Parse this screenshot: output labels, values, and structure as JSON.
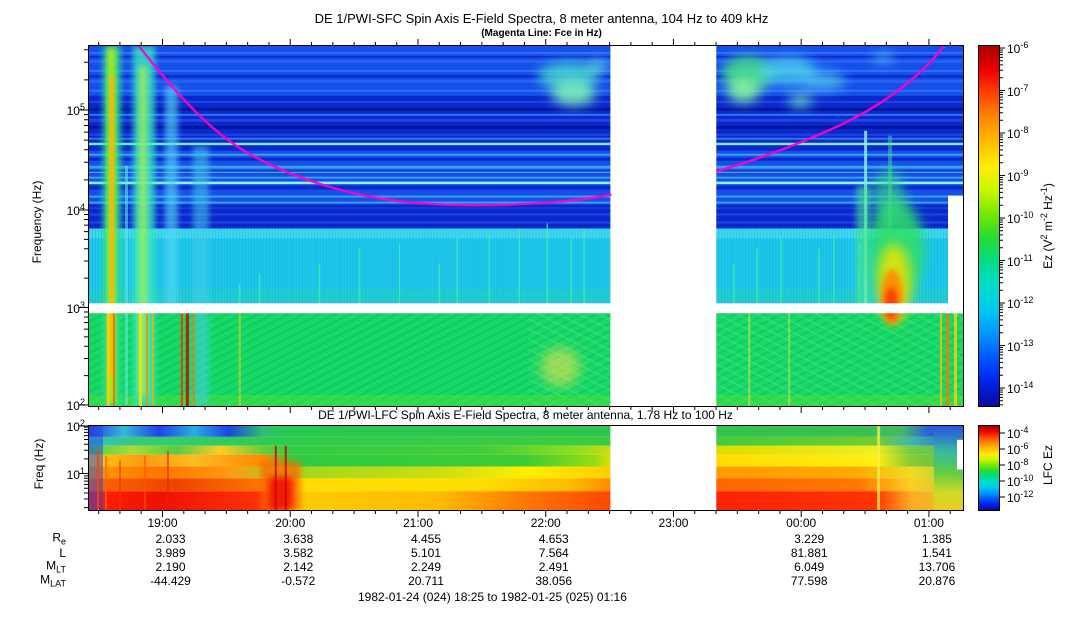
{
  "header": {
    "title": "DE 1/PWI-SFC  Spin Axis E-Field Spectra, 8 meter antenna, 104 Hz to 409 kHz",
    "subtitle": "(Magenta Line: Fce in Hz)"
  },
  "sfc_panel": {
    "ylabel": "Frequency (Hz)",
    "ytick_base": "10",
    "ytick_exponents": [
      "5",
      "4",
      "3",
      "2"
    ],
    "colorbar": {
      "tick_base": "10",
      "tick_exponents": [
        "-6",
        "-7",
        "-8",
        "-9",
        "-10",
        "-11",
        "-12",
        "-13",
        "-14"
      ],
      "label_parts": [
        [
          "t",
          "Ez (V"
        ],
        [
          "s",
          "2"
        ],
        [
          "t",
          " m"
        ],
        [
          "s",
          "-2"
        ],
        [
          "t",
          " Hz"
        ],
        [
          "s",
          "-1"
        ],
        [
          "t",
          ")"
        ]
      ]
    }
  },
  "lfc_panel": {
    "title": "DE 1/PWI-LFC  Spin Axis E-Field Spectra, 8 meter antenna, 1.78 Hz to 100 Hz",
    "ylabel": "Freq (Hz)",
    "ytick_base": "10",
    "ytick_exponents": [
      "2",
      "1"
    ],
    "colorbar": {
      "tick_base": "10",
      "tick_exponents": [
        "-4",
        "-6",
        "-8",
        "-10",
        "-12"
      ],
      "label": "LFC Ez"
    }
  },
  "time_axis": {
    "labels": [
      "19:00",
      "20:00",
      "21:00",
      "22:00",
      "23:00",
      "00:00",
      "01:00"
    ]
  },
  "ephemeris": {
    "rows": [
      {
        "label": "R",
        "sub": "e",
        "values": [
          "2.033",
          "3.638",
          "4.455",
          "4.653",
          "",
          "3.229",
          "1.385"
        ]
      },
      {
        "label": "L",
        "sub": "",
        "values": [
          "3.989",
          "3.582",
          "5.101",
          "7.564",
          "",
          "81.881",
          "1.541"
        ]
      },
      {
        "label": "M",
        "sub": "LT",
        "values": [
          "2.190",
          "2.142",
          "2.249",
          "2.491",
          "",
          "6.049",
          "13.706"
        ]
      },
      {
        "label": "M",
        "sub": "LAT",
        "values": [
          "-44.429",
          "-0.572",
          "20.711",
          "38.056",
          "",
          "77.598",
          "20.876"
        ]
      }
    ]
  },
  "footer": "1982-01-24 (024) 18:25 to 1982-01-25 (025) 01:16",
  "colors": {
    "fce_line": "#ff00c8",
    "data_gap": "#ffffff",
    "scale": [
      "#aa0000",
      "#ee0000",
      "#ff4400",
      "#ff8800",
      "#ffbb00",
      "#ffee00",
      "#ccf500",
      "#77e800",
      "#22dd33",
      "#00dd88",
      "#00ddcc",
      "#00c8f0",
      "#0096ff",
      "#0055ff",
      "#0022ee",
      "#0b0b99"
    ]
  },
  "chart_data": [
    {
      "type": "heatmap",
      "title": "DE 1/PWI-SFC  Spin Axis E-Field Spectra, 8 meter antenna, 104 Hz to 409 kHz",
      "xlabel": "UT, 1982-01-24 18:25 to 1982-01-25 01:16",
      "x_ticks": [
        "19:00",
        "20:00",
        "21:00",
        "22:00",
        "23:00",
        "00:00",
        "01:00"
      ],
      "ylabel": "Frequency (Hz)",
      "y_scale": "log",
      "y_range_hz": [
        100,
        409000
      ],
      "z_label": "Ez (V^2 m^-2 Hz^-1)",
      "z_range": [
        1e-14,
        1e-06
      ],
      "color_scale": "rainbow (blue=low, red=high)",
      "overlay_line": {
        "name": "Fce electron cyclotron frequency",
        "color": "magenta",
        "shape": "enters top (>400 kHz) near 18:50, descends to minimum ~1.4e4 Hz around 21:30-22:00, rises after the data gap and exits top (>400 kHz) near 00:55"
      },
      "data_gaps": [
        "vertical white band ~22:28 to ~23:20",
        "horizontal white band just below 1 kHz",
        "white column near right edge below ~20 kHz after ~01:05"
      ],
      "features": [
        "intense broadband vertical bursts (green/yellow) 18:30-19:00 spanning 100 Hz to 400 kHz",
        "bright cyan horizontal interference lines near 50 kHz and 17 kHz",
        "auroral kilometric radiation patches (green/cyan) above 70 kHz near 21:45-22:25 and 23:25-00:10",
        "diffuse cyan band ~300 Hz-3 kHz across the interval",
        "green band 100 Hz-1 kHz with fine vertical/diagonal striations, yellow-red streaks at both ends",
        "intense funnel-shaped burst near 00:30 from ~200 Hz to ~20 kHz with orange-red core"
      ]
    },
    {
      "type": "heatmap",
      "title": "DE 1/PWI-LFC  Spin Axis E-Field Spectra, 8 meter antenna, 1.78 Hz to 100 Hz",
      "ylabel": "Freq (Hz)",
      "y_scale": "log",
      "y_range_hz": [
        1.78,
        100
      ],
      "z_label": "LFC Ez",
      "z_range": [
        1e-12,
        0.0001
      ],
      "color_scale": "rainbow (blue=low, red=high)",
      "data_gaps": [
        "vertical white band ~22:28 to ~23:20"
      ],
      "features": [
        "intensity increases toward low frequency: red ~1e-4 near 2 Hz, blue-green 1e-8..1e-10 near 100 Hz",
        "chaotic intense red/orange bursts 18:30-20:00",
        "banded layers green/yellow/orange/red after 20:00",
        "cooler blue-green column after ~01:00"
      ]
    },
    {
      "type": "table",
      "columns": [
        "19:00",
        "20:00",
        "21:00",
        "22:00",
        "23:00",
        "00:00",
        "01:00"
      ],
      "rows": [
        {
          "label": "Re",
          "values": [
            "2.033",
            "3.638",
            "4.455",
            "4.653",
            "",
            "3.229",
            "1.385"
          ]
        },
        {
          "label": "L",
          "values": [
            "3.989",
            "3.582",
            "5.101",
            "7.564",
            "",
            "81.881",
            "1.541"
          ]
        },
        {
          "label": "MLT",
          "values": [
            "2.190",
            "2.142",
            "2.249",
            "2.491",
            "",
            "6.049",
            "13.706"
          ]
        },
        {
          "label": "MLAT",
          "values": [
            "-44.429",
            "-0.572",
            "20.711",
            "38.056",
            "",
            "77.598",
            "20.876"
          ]
        }
      ]
    }
  ]
}
